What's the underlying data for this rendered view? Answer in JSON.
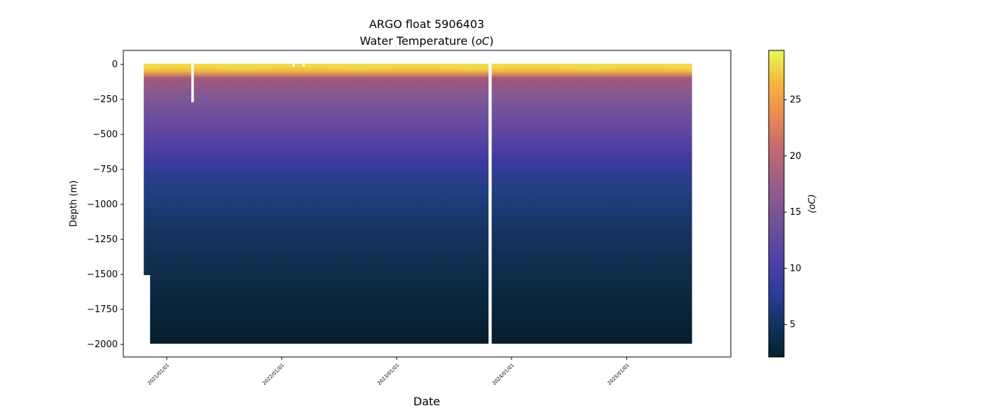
{
  "chart_data": {
    "type": "heatmap",
    "title": "ARGO float 5906403",
    "subtitle": "Water Temperature (",
    "subtitle_unit": "oC",
    "subtitle_end": ")",
    "xlabel": "Date",
    "ylabel": "Depth (m)",
    "colorbar_label": "(oC)",
    "x_range": [
      "2020-08-15",
      "2025-10-25"
    ],
    "ylim": [
      -2090,
      100
    ],
    "yticks": [
      0,
      -250,
      -500,
      -750,
      -1000,
      -1250,
      -1500,
      -1750,
      -2000
    ],
    "ytick_labels": [
      "0",
      "−250",
      "−500",
      "−750",
      "−1000",
      "−1250",
      "−1500",
      "−1750",
      "−2000"
    ],
    "xticks": [
      "2021-01-01",
      "2022-01-01",
      "2023-01-01",
      "2024-01-01",
      "2025-01-01"
    ],
    "xtick_labels": [
      "2021/01/01",
      "2022/01/01",
      "2023/01/01",
      "2024/01/01",
      "2025/01/01"
    ],
    "colorbar_range": [
      2.1,
      29.4
    ],
    "colorbar_ticks": [
      5,
      10,
      15,
      20,
      25
    ],
    "colorbar_tick_labels": [
      "5",
      "10",
      "15",
      "20",
      "25"
    ],
    "profiles": {
      "first_date": "2020-10-20",
      "last_date": "2025-07-20",
      "interval_days": 10,
      "shallow_profiles_until": "2020-10-30",
      "shallow_max_depth": 1500,
      "max_depth": 1990,
      "gaps": [
        {
          "start": "2021-03-20",
          "end": "2021-03-28",
          "max_depth": 270
        },
        {
          "start": "2023-10-20",
          "end": "2023-10-30",
          "max_depth": 2000
        },
        {
          "start": "2022-02-05",
          "end": "2022-02-10",
          "max_depth": 15
        },
        {
          "start": "2022-03-08",
          "end": "2022-03-13",
          "max_depth": 15
        }
      ],
      "temperature_by_depth": [
        {
          "depth": 0,
          "temp": 29
        },
        {
          "depth": 40,
          "temp": 22
        },
        {
          "depth": 80,
          "temp": 15
        },
        {
          "depth": 250,
          "temp": 13
        },
        {
          "depth": 500,
          "temp": 9
        },
        {
          "depth": 750,
          "temp": 6
        },
        {
          "depth": 1000,
          "temp": 5
        },
        {
          "depth": 1500,
          "temp": 3.5
        },
        {
          "depth": 2000,
          "temp": 2.3
        }
      ]
    }
  }
}
